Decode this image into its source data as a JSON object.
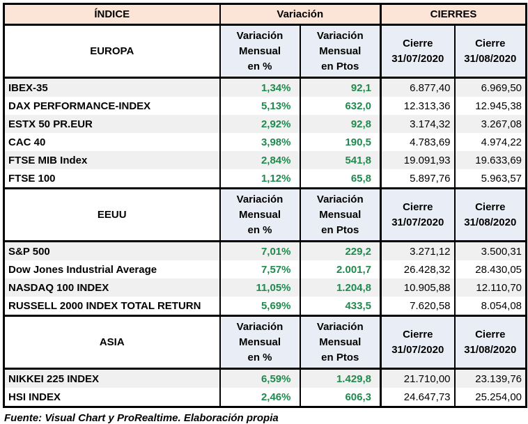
{
  "chart_data": {
    "type": "table",
    "main_header": {
      "indice": "ÍNDICE",
      "variacion": "Variación",
      "cierres": "CIERRES"
    },
    "column_header_lines": {
      "var_pct": [
        "Variación",
        "Mensual",
        "en %"
      ],
      "var_ptos": [
        "Variación",
        "Mensual",
        "en Ptos"
      ],
      "cierre_jul": [
        "Cierre",
        "31/07/2020"
      ],
      "cierre_aug": [
        "Cierre",
        "31/08/2020"
      ]
    },
    "columns": [
      "ÍNDICE",
      "Variación Mensual en %",
      "Variación Mensual en Ptos",
      "Cierre 31/07/2020",
      "Cierre 31/08/2020"
    ],
    "sections": [
      {
        "region": "EUROPA",
        "rows": [
          {
            "name": "IBEX-35",
            "var_pct": "1,34%",
            "var_ptos": "92,1",
            "cierre_jul": "6.877,40",
            "cierre_aug": "6.969,50"
          },
          {
            "name": "DAX PERFORMANCE-INDEX",
            "var_pct": "5,13%",
            "var_ptos": "632,0",
            "cierre_jul": "12.313,36",
            "cierre_aug": "12.945,38"
          },
          {
            "name": "ESTX 50 PR.EUR",
            "var_pct": "2,92%",
            "var_ptos": "92,8",
            "cierre_jul": "3.174,32",
            "cierre_aug": "3.267,08"
          },
          {
            "name": "CAC 40",
            "var_pct": "3,98%",
            "var_ptos": "190,5",
            "cierre_jul": "4.783,69",
            "cierre_aug": "4.974,22"
          },
          {
            "name": "FTSE MIB Index",
            "var_pct": "2,84%",
            "var_ptos": "541,8",
            "cierre_jul": "19.091,93",
            "cierre_aug": "19.633,69"
          },
          {
            "name": "FTSE 100",
            "var_pct": "1,12%",
            "var_ptos": "65,8",
            "cierre_jul": "5.897,76",
            "cierre_aug": "5.963,57"
          }
        ]
      },
      {
        "region": "EEUU",
        "rows": [
          {
            "name": "S&P 500",
            "var_pct": "7,01%",
            "var_ptos": "229,2",
            "cierre_jul": "3.271,12",
            "cierre_aug": "3.500,31"
          },
          {
            "name": "Dow Jones Industrial Average",
            "var_pct": "7,57%",
            "var_ptos": "2.001,7",
            "cierre_jul": "26.428,32",
            "cierre_aug": "28.430,05"
          },
          {
            "name": "NASDAQ 100 INDEX",
            "var_pct": "11,05%",
            "var_ptos": "1.204,8",
            "cierre_jul": "10.905,88",
            "cierre_aug": "12.110,70"
          },
          {
            "name": "RUSSELL 2000 INDEX TOTAL RETURN",
            "var_pct": "5,69%",
            "var_ptos": "433,5",
            "cierre_jul": "7.620,58",
            "cierre_aug": "8.054,08"
          }
        ]
      },
      {
        "region": "ASIA",
        "rows": [
          {
            "name": "NIKKEI 225 INDEX",
            "var_pct": "6,59%",
            "var_ptos": "1.429,8",
            "cierre_jul": "21.710,00",
            "cierre_aug": "23.139,76"
          },
          {
            "name": "HSI INDEX",
            "var_pct": "2,46%",
            "var_ptos": "606,3",
            "cierre_jul": "24.647,73",
            "cierre_aug": "25.254,00"
          }
        ]
      }
    ],
    "footer": "Fuente: Visual Chart y ProRealtime. Elaboración propia"
  },
  "colors": {
    "header_bg": "#FCE4D6",
    "subheader_bg": "#E9EDF5",
    "stripe_bg": "#F0F0F0",
    "positive_green": "#1F8A4E",
    "border_color": "#000000",
    "text_color": "#000000"
  }
}
